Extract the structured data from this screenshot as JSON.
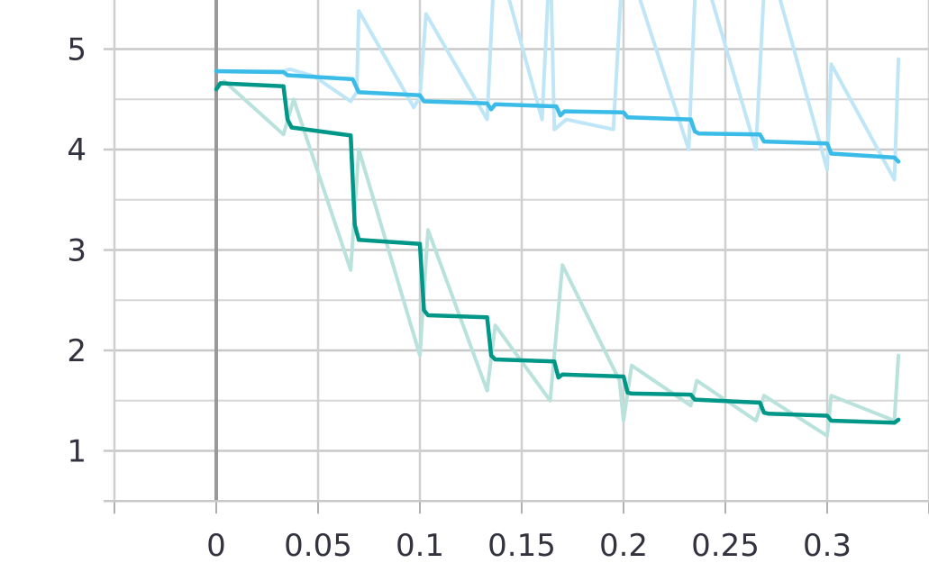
{
  "chart_data": {
    "type": "line",
    "title": "",
    "xlabel": "",
    "ylabel": "",
    "xlim": [
      -0.05,
      0.35
    ],
    "ylim": [
      0.5,
      5.5
    ],
    "x_ticks": [
      0,
      0.05,
      0.1,
      0.15,
      0.2,
      0.25,
      0.3
    ],
    "x_tick_labels": [
      "0",
      "0.05",
      "0.1",
      "0.15",
      "0.2",
      "0.25",
      "0.3"
    ],
    "x_minor_ticks": [
      -0.05,
      0.35
    ],
    "y_ticks": [
      1,
      2,
      3,
      4,
      5
    ],
    "y_tick_labels": [
      "1",
      "2",
      "3",
      "4",
      "5"
    ],
    "y_minor_ticks": [
      0.5,
      1.5,
      2.5,
      3.5,
      4.5,
      5.5
    ],
    "grid": true,
    "legend": "none",
    "series": [
      {
        "color": "#3bbce8",
        "raw_color": "#bfe6f7",
        "smoothed": [
          [
            0,
            4.78
          ],
          [
            0.033,
            4.77
          ],
          [
            0.035,
            4.74
          ],
          [
            0.067,
            4.7
          ],
          [
            0.07,
            4.57
          ],
          [
            0.1,
            4.54
          ],
          [
            0.102,
            4.48
          ],
          [
            0.133,
            4.46
          ],
          [
            0.135,
            4.4
          ],
          [
            0.137,
            4.45
          ],
          [
            0.167,
            4.43
          ],
          [
            0.169,
            4.34
          ],
          [
            0.171,
            4.38
          ],
          [
            0.2,
            4.37
          ],
          [
            0.202,
            4.32
          ],
          [
            0.233,
            4.3
          ],
          [
            0.235,
            4.18
          ],
          [
            0.237,
            4.16
          ],
          [
            0.267,
            4.15
          ],
          [
            0.269,
            4.08
          ],
          [
            0.3,
            4.06
          ],
          [
            0.302,
            3.96
          ],
          [
            0.333,
            3.92
          ],
          [
            0.335,
            3.88
          ]
        ],
        "raw": [
          [
            0,
            4.78
          ],
          [
            0.033,
            4.78
          ],
          [
            0.036,
            4.8
          ],
          [
            0.048,
            4.73
          ],
          [
            0.066,
            4.48
          ],
          [
            0.069,
            4.57
          ],
          [
            0.07,
            5.38
          ],
          [
            0.097,
            4.42
          ],
          [
            0.1,
            4.52
          ],
          [
            0.103,
            5.35
          ],
          [
            0.133,
            4.3
          ],
          [
            0.137,
            6.0
          ],
          [
            0.16,
            4.3
          ],
          [
            0.164,
            6.0
          ],
          [
            0.166,
            4.2
          ],
          [
            0.172,
            4.3
          ],
          [
            0.195,
            4.2
          ],
          [
            0.2,
            6.0
          ],
          [
            0.232,
            4.0
          ],
          [
            0.236,
            6.0
          ],
          [
            0.265,
            4.0
          ],
          [
            0.27,
            6.0
          ],
          [
            0.3,
            3.8
          ],
          [
            0.302,
            4.85
          ],
          [
            0.333,
            3.7
          ],
          [
            0.335,
            4.9
          ]
        ]
      },
      {
        "color": "#009688",
        "raw_color": "#b8e2db",
        "smoothed": [
          [
            0,
            4.6
          ],
          [
            0.002,
            4.66
          ],
          [
            0.033,
            4.63
          ],
          [
            0.035,
            4.3
          ],
          [
            0.037,
            4.22
          ],
          [
            0.066,
            4.14
          ],
          [
            0.068,
            3.25
          ],
          [
            0.07,
            3.1
          ],
          [
            0.1,
            3.06
          ],
          [
            0.102,
            2.4
          ],
          [
            0.104,
            2.35
          ],
          [
            0.133,
            2.33
          ],
          [
            0.135,
            1.95
          ],
          [
            0.137,
            1.91
          ],
          [
            0.166,
            1.89
          ],
          [
            0.168,
            1.73
          ],
          [
            0.17,
            1.76
          ],
          [
            0.2,
            1.74
          ],
          [
            0.202,
            1.58
          ],
          [
            0.204,
            1.57
          ],
          [
            0.233,
            1.56
          ],
          [
            0.235,
            1.51
          ],
          [
            0.267,
            1.48
          ],
          [
            0.269,
            1.38
          ],
          [
            0.271,
            1.37
          ],
          [
            0.3,
            1.35
          ],
          [
            0.302,
            1.3
          ],
          [
            0.333,
            1.28
          ],
          [
            0.335,
            1.31
          ]
        ],
        "raw": [
          [
            0,
            4.6
          ],
          [
            0.004,
            4.68
          ],
          [
            0.033,
            4.15
          ],
          [
            0.038,
            4.5
          ],
          [
            0.066,
            2.8
          ],
          [
            0.07,
            4.0
          ],
          [
            0.1,
            1.95
          ],
          [
            0.104,
            3.2
          ],
          [
            0.133,
            1.6
          ],
          [
            0.137,
            2.25
          ],
          [
            0.164,
            1.5
          ],
          [
            0.17,
            2.85
          ],
          [
            0.198,
            1.7
          ],
          [
            0.2,
            1.3
          ],
          [
            0.204,
            1.85
          ],
          [
            0.233,
            1.45
          ],
          [
            0.236,
            1.7
          ],
          [
            0.265,
            1.3
          ],
          [
            0.269,
            1.55
          ],
          [
            0.3,
            1.15
          ],
          [
            0.302,
            1.55
          ],
          [
            0.333,
            1.3
          ],
          [
            0.335,
            1.95
          ]
        ]
      }
    ]
  }
}
